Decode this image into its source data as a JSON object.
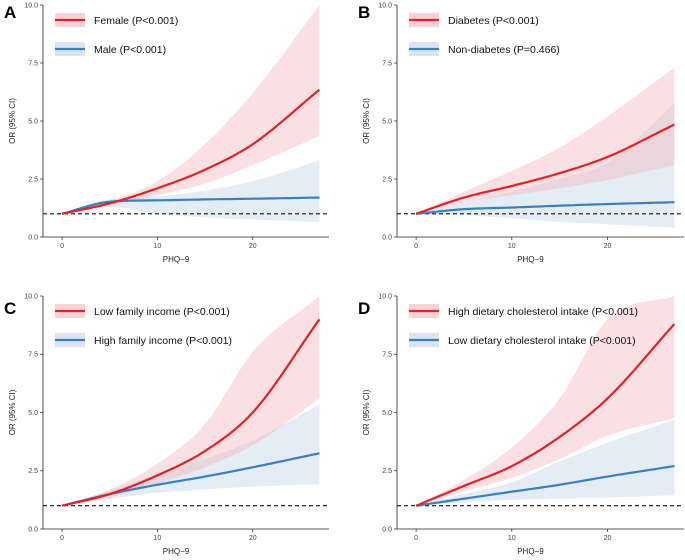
{
  "chart_data": [
    {
      "type": "area",
      "panel": "A",
      "xlabel": "PHQ−9",
      "ylabel": "OR (95% CI)",
      "xlim": [
        -2,
        28
      ],
      "ylim": [
        0,
        10
      ],
      "xticks": [
        0,
        10,
        20
      ],
      "yticks": [
        0.0,
        2.5,
        5.0,
        7.5,
        10.0
      ],
      "ytick_labels": [
        "0.0",
        "2.5",
        "5.0",
        "7.5",
        "10.0"
      ],
      "reference_line": 1.0,
      "series": [
        {
          "name": "Female (P<0.001)",
          "color": "#e0232a",
          "band_color": "#f4b6b9",
          "x": [
            0,
            5,
            10,
            15,
            20,
            27
          ],
          "values": [
            1.0,
            1.45,
            2.1,
            2.9,
            4.0,
            6.35
          ],
          "lower": [
            1.0,
            1.35,
            1.8,
            2.3,
            3.1,
            4.35
          ],
          "upper": [
            1.0,
            1.55,
            2.4,
            4.0,
            6.2,
            10.0
          ]
        },
        {
          "name": "Male (P<0.001)",
          "color": "#3a7fbf",
          "band_color": "#c3d4ea",
          "x": [
            0,
            5,
            10,
            15,
            20,
            27
          ],
          "values": [
            1.0,
            1.52,
            1.58,
            1.62,
            1.65,
            1.7
          ],
          "lower": [
            1.0,
            1.3,
            1.0,
            0.85,
            0.75,
            0.65
          ],
          "upper": [
            1.0,
            1.62,
            1.75,
            2.0,
            2.4,
            3.3
          ]
        }
      ]
    },
    {
      "type": "area",
      "panel": "B",
      "xlabel": "PHQ−9",
      "ylabel": "OR (95% CI)",
      "xlim": [
        -2,
        28
      ],
      "ylim": [
        0,
        10
      ],
      "xticks": [
        0,
        10,
        20
      ],
      "yticks": [
        0.0,
        2.5,
        5.0,
        7.5,
        10.0
      ],
      "ytick_labels": [
        "0.0",
        "2.5",
        "5.0",
        "7.5",
        "10.0"
      ],
      "reference_line": 1.0,
      "series": [
        {
          "name": "Diabetes (P<0.001)",
          "color": "#e0232a",
          "band_color": "#f4b6b9",
          "x": [
            0,
            5,
            10,
            15,
            20,
            27
          ],
          "values": [
            1.0,
            1.7,
            2.2,
            2.75,
            3.45,
            4.85
          ],
          "lower": [
            1.0,
            1.5,
            1.8,
            2.1,
            2.45,
            3.1
          ],
          "upper": [
            1.0,
            1.95,
            2.85,
            3.85,
            5.2,
            7.3
          ]
        },
        {
          "name": "Non-diabetes (P=0.466)",
          "color": "#3a7fbf",
          "band_color": "#c3d4ea",
          "x": [
            0,
            5,
            10,
            15,
            20,
            27
          ],
          "values": [
            1.0,
            1.2,
            1.27,
            1.35,
            1.42,
            1.5
          ],
          "lower": [
            1.0,
            0.95,
            0.8,
            0.65,
            0.55,
            0.4
          ],
          "upper": [
            1.0,
            1.5,
            1.95,
            2.5,
            3.2,
            5.75
          ]
        }
      ]
    },
    {
      "type": "area",
      "panel": "C",
      "xlabel": "PHQ−9",
      "ylabel": "OR (95% CI)",
      "xlim": [
        -2,
        28
      ],
      "ylim": [
        0,
        10
      ],
      "xticks": [
        0,
        10,
        20
      ],
      "yticks": [
        0.0,
        2.5,
        5.0,
        7.5,
        10.0
      ],
      "ytick_labels": [
        "0.0",
        "2.5",
        "5.0",
        "7.5",
        "10.0"
      ],
      "reference_line": 1.0,
      "series": [
        {
          "name": "Low family income (P<0.001)",
          "color": "#e0232a",
          "band_color": "#f4b6b9",
          "x": [
            0,
            5,
            10,
            15,
            20,
            27
          ],
          "values": [
            1.0,
            1.5,
            2.3,
            3.35,
            5.0,
            9.0
          ],
          "lower": [
            1.0,
            1.35,
            1.95,
            2.65,
            3.6,
            5.6
          ],
          "upper": [
            1.0,
            1.7,
            2.8,
            4.5,
            7.6,
            10.0
          ]
        },
        {
          "name": "High family income (P<0.001)",
          "color": "#3a7fbf",
          "band_color": "#c3d4ea",
          "x": [
            0,
            5,
            10,
            15,
            20,
            27
          ],
          "values": [
            1.0,
            1.5,
            1.9,
            2.25,
            2.65,
            3.25
          ],
          "lower": [
            1.0,
            1.3,
            1.55,
            1.7,
            1.82,
            1.92
          ],
          "upper": [
            1.0,
            1.65,
            2.35,
            3.0,
            3.8,
            5.35
          ]
        }
      ]
    },
    {
      "type": "area",
      "panel": "D",
      "xlabel": "PHQ−9",
      "ylabel": "OR (95% CI)",
      "xlim": [
        -2,
        28
      ],
      "ylim": [
        0,
        10
      ],
      "xticks": [
        0,
        10,
        20
      ],
      "yticks": [
        0.0,
        2.5,
        5.0,
        7.5,
        10.0
      ],
      "ytick_labels": [
        "0.0",
        "2.5",
        "5.0",
        "7.5",
        "10.0"
      ],
      "reference_line": 1.0,
      "series": [
        {
          "name": "High dietary cholesterol intake (P<0.001)",
          "color": "#e0232a",
          "band_color": "#f4b6b9",
          "x": [
            0,
            5,
            10,
            15,
            20,
            27
          ],
          "values": [
            1.0,
            1.85,
            2.7,
            3.95,
            5.6,
            8.8
          ],
          "lower": [
            1.0,
            1.6,
            2.2,
            3.0,
            4.0,
            4.75
          ],
          "upper": [
            1.0,
            2.1,
            3.5,
            5.6,
            9.0,
            10.0
          ]
        },
        {
          "name": "Low dietary cholesterol intake (P<0.001)",
          "color": "#3a7fbf",
          "band_color": "#c3d4ea",
          "x": [
            0,
            5,
            10,
            15,
            20,
            27
          ],
          "values": [
            1.0,
            1.3,
            1.6,
            1.9,
            2.25,
            2.7
          ],
          "lower": [
            1.0,
            1.15,
            1.25,
            1.3,
            1.35,
            1.45
          ],
          "upper": [
            1.0,
            1.5,
            2.0,
            2.9,
            3.7,
            4.7
          ]
        }
      ]
    }
  ]
}
